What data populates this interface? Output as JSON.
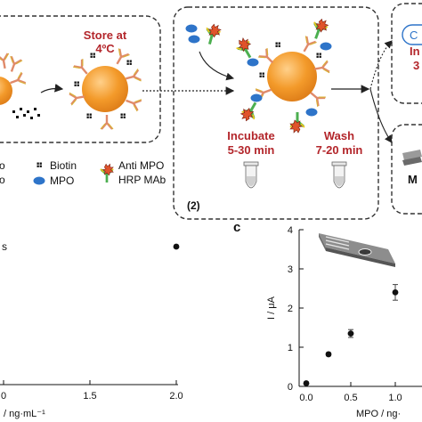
{
  "scheme": {
    "store_line1": "Store at",
    "store_line2": "4ºC",
    "step_number": "(2)",
    "incubate_line1": "Incubate",
    "incubate_line2": "5-30 min",
    "wash_line1": "Wash",
    "wash_line2": "7-20 min",
    "right_partial_top": "C",
    "right_partial_mid_1": "In",
    "right_partial_mid_2": "3",
    "right_partial_bottom": "M",
    "colors": {
      "accent_red": "#b3262b",
      "bead": "#f39a2a",
      "mpo": "#2e74c9",
      "box_border": "#333333"
    }
  },
  "legend": {
    "biotin": "Biotin",
    "mpo": "MPO",
    "anti_line1": "Anti MPO",
    "anti_line2": "HRP MAb",
    "partial_left_1": "o",
    "partial_left_2": "o"
  },
  "panel_b": {
    "tick_labels": [
      "0",
      "1.5",
      "2.0"
    ],
    "xlabel": "/ ng·mL⁻¹",
    "partial_left_symbol": "s"
  },
  "panel_c": {
    "label": "c",
    "ylabel": "I / μA",
    "xlabel": "MPO / ng·",
    "y_ticks": [
      "0",
      "1",
      "2",
      "3",
      "4"
    ],
    "x_ticks": [
      "0.0",
      "0.5",
      "1.0"
    ]
  },
  "chart_data": [
    {
      "type": "scatter",
      "title": "",
      "xlabel": "/ ng·mL⁻¹",
      "ylabel": "",
      "x_ticks": [
        0,
        1.5,
        2.0
      ],
      "points": [
        {
          "x": 2.0,
          "y": null
        }
      ]
    },
    {
      "type": "scatter",
      "title": "",
      "xlabel": "MPO / ng·",
      "ylabel": "I / μA",
      "xlim": [
        0,
        1.2
      ],
      "ylim": [
        0,
        4
      ],
      "points": [
        {
          "x": 0.0,
          "y": 0.08,
          "err": 0.02
        },
        {
          "x": 0.25,
          "y": 0.82,
          "err": 0.04
        },
        {
          "x": 0.5,
          "y": 1.35,
          "err": 0.1
        },
        {
          "x": 1.0,
          "y": 2.4,
          "err": 0.2
        }
      ]
    }
  ]
}
